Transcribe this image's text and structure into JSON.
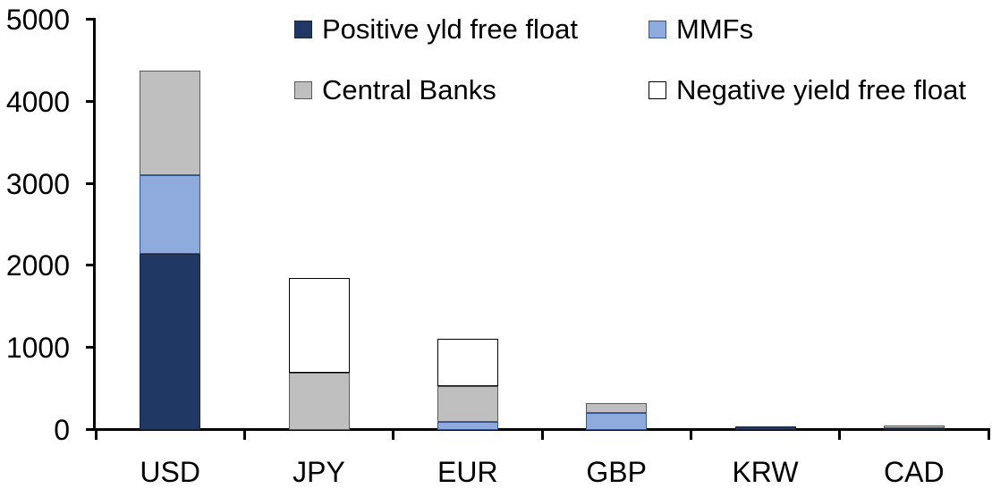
{
  "chart_data": {
    "type": "bar",
    "stacked": true,
    "title": "",
    "xlabel": "",
    "ylabel": "",
    "categories": [
      "USD",
      "JPY",
      "EUR",
      "GBP",
      "KRW",
      "CAD"
    ],
    "series": [
      {
        "name": "Positive yld free float",
        "color": "#203864",
        "border_color": "#16243f",
        "values": [
          2150,
          0,
          0,
          0,
          45,
          25
        ]
      },
      {
        "name": "MMFs",
        "color": "#8FAADC",
        "border_color": "#35558f",
        "values": [
          950,
          0,
          100,
          210,
          0,
          0
        ]
      },
      {
        "name": "Central Banks",
        "color": "#BFBFBF",
        "border_color": "#595959",
        "values": [
          1280,
          700,
          435,
          120,
          0,
          30
        ]
      },
      {
        "name": "Negative yield free float",
        "color": "#FFFFFF",
        "border_color": "#000000",
        "values": [
          0,
          1150,
          575,
          0,
          0,
          0
        ]
      }
    ],
    "totals": {
      "USD": 4380,
      "JPY": 1850,
      "EUR": 1110,
      "GBP": 330,
      "KRW": 45,
      "CAD": 55
    },
    "ylim": [
      0,
      5000
    ],
    "yticks": [
      "0",
      "1000",
      "2000",
      "3000",
      "4000",
      "5000"
    ],
    "grid": false,
    "legend_position": "top",
    "legend_columns": 2,
    "axis_color": "#000000",
    "background_color": "#FFFFFF"
  }
}
